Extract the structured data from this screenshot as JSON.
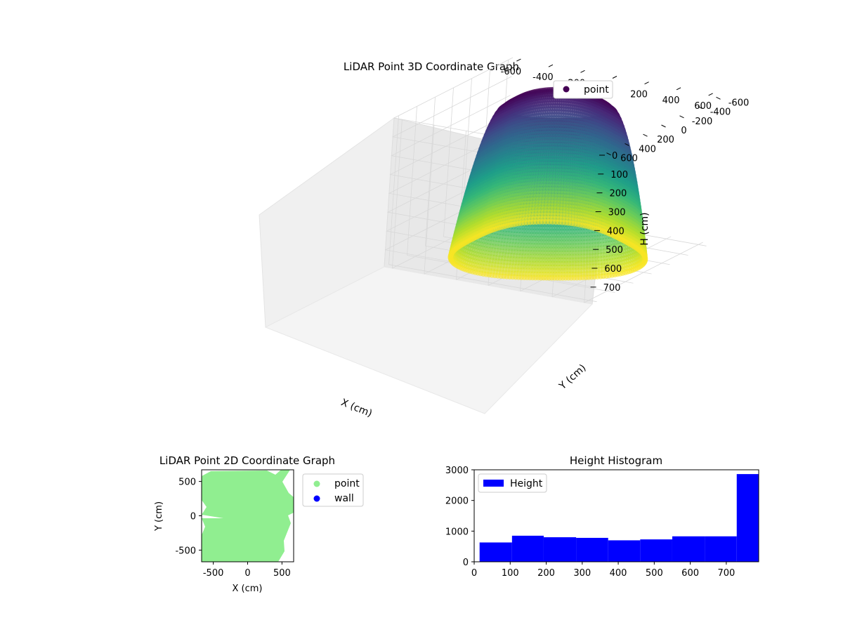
{
  "chart_data": [
    {
      "type": "scatter",
      "title": "LiDAR Point 3D Coordinate Graph",
      "xlabel": "X (cm)",
      "ylabel": "Y (cm)",
      "zlabel": "H (cm)",
      "xlim": [
        -650,
        650
      ],
      "ylim": [
        -650,
        650
      ],
      "zlim": [
        0,
        790
      ],
      "z_inverted": true,
      "x_ticks": [
        "-600",
        "-400",
        "-200",
        "0",
        "200",
        "400",
        "600"
      ],
      "y_ticks": [
        "-600",
        "-400",
        "-200",
        "0",
        "200",
        "400",
        "600"
      ],
      "z_ticks": [
        "0",
        "100",
        "200",
        "300",
        "400",
        "500",
        "600",
        "700"
      ],
      "legend": {
        "position": "top-right",
        "entries": [
          {
            "label": "point",
            "color": "#440154"
          }
        ]
      },
      "colormap": "viridis",
      "grid": true,
      "shape": "cylindrical point cloud: radius ~560 cm, heights 0–780 cm, ~240 azimuth scan arcs"
    },
    {
      "type": "scatter",
      "title": "LiDAR Point 2D Coordinate Graph",
      "xlabel": "X (cm)",
      "ylabel": "Y (cm)",
      "xlim": [
        -670,
        670
      ],
      "ylim": [
        -670,
        670
      ],
      "x_ticks": [
        "-500",
        "0",
        "500"
      ],
      "y_ticks": [
        "500",
        "0",
        "-500"
      ],
      "legend": {
        "position": "outside-right",
        "entries": [
          {
            "label": "point",
            "color": "#90ee90"
          },
          {
            "label": "wall",
            "color": "#0000ff"
          }
        ]
      }
    },
    {
      "type": "bar",
      "title": "Height Histogram",
      "legend": {
        "position": "top-left",
        "entries": [
          {
            "label": "Height",
            "color": "#0000ff"
          }
        ]
      },
      "xlim": [
        0,
        790
      ],
      "ylim": [
        0,
        3000
      ],
      "x_ticks": [
        "0",
        "100",
        "200",
        "300",
        "400",
        "500",
        "600",
        "700"
      ],
      "y_ticks": [
        "0",
        "1000",
        "2000",
        "3000"
      ],
      "bins": [
        {
          "from": 15,
          "to": 105,
          "count": 630
        },
        {
          "from": 105,
          "to": 193,
          "count": 850
        },
        {
          "from": 193,
          "to": 283,
          "count": 800
        },
        {
          "from": 283,
          "to": 372,
          "count": 780
        },
        {
          "from": 372,
          "to": 461,
          "count": 700
        },
        {
          "from": 461,
          "to": 550,
          "count": 730
        },
        {
          "from": 550,
          "to": 640,
          "count": 830
        },
        {
          "from": 640,
          "to": 729,
          "count": 830
        },
        {
          "from": 729,
          "to": 790,
          "count": 2860
        }
      ]
    }
  ]
}
